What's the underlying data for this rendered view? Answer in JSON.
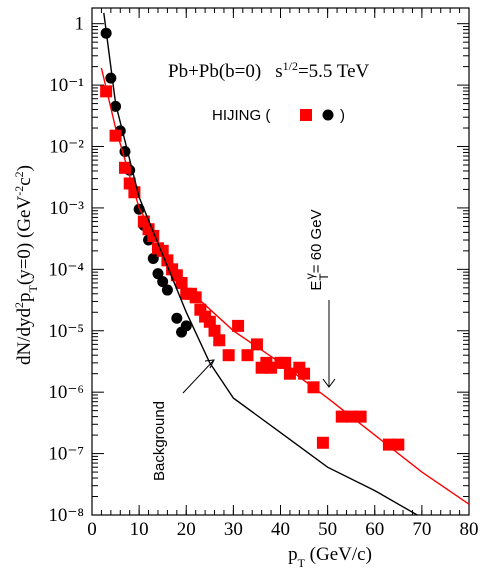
{
  "chart_data": {
    "type": "scatter",
    "title": [
      "Pb+Pb(b=0)",
      "s",
      "1/2",
      "=5.5 TeV"
    ],
    "x_label": [
      "p",
      "T",
      " (GeV/c)"
    ],
    "y_label": [
      "dN/dyd",
      "2",
      "p",
      "T",
      "(y=0) (GeV",
      "-2",
      "c",
      "2",
      ")"
    ],
    "legend": [
      "HIJING (",
      ")"
    ],
    "annotations": {
      "background": "Background",
      "energy": [
        "E",
        "T",
        "γ",
        "= 60 GeV"
      ]
    },
    "log_y": true,
    "xlim": [
      0,
      80
    ],
    "xticks": [
      0,
      10,
      20,
      30,
      40,
      50,
      60,
      70,
      80
    ],
    "ylim": [
      1e-08,
      1.8
    ],
    "yticks": [
      1,
      {
        "value": 0.1,
        "label": "10⁻¹"
      },
      {
        "value": 0.01,
        "label": "10⁻²"
      },
      {
        "value": 0.001,
        "label": "10⁻³"
      },
      {
        "value": 0.0001,
        "label": "10⁻⁴"
      },
      {
        "value": 1e-05,
        "label": "10⁻⁵"
      },
      {
        "value": 1e-06,
        "label": "10⁻⁶"
      },
      {
        "value": 1e-07,
        "label": "10⁻⁷"
      },
      {
        "value": 1e-08,
        "label": "10⁻⁸"
      }
    ],
    "series": [
      {
        "mode": "markers",
        "marker": "circle",
        "color": "#000000",
        "x": [
          3,
          4,
          5,
          6,
          7,
          8,
          9,
          10,
          11,
          12,
          13,
          14,
          15,
          16,
          18,
          19,
          20
        ],
        "values": [
          0.7,
          0.13,
          0.045,
          0.018,
          0.0083,
          0.0041,
          0.0019,
          0.00095,
          0.00052,
          0.0003,
          0.00015,
          8.5e-05,
          6.3e-05,
          4.6e-05,
          1.6e-05,
          9.5e-06,
          1.2e-05
        ]
      },
      {
        "mode": "markers",
        "marker": "square",
        "color": "#ff0000",
        "x": [
          3,
          5,
          7,
          8,
          9,
          11,
          12,
          13,
          14,
          15,
          16,
          17,
          18,
          19,
          20,
          21,
          22,
          23,
          24,
          25,
          26,
          27,
          29,
          31,
          33,
          35,
          36,
          37,
          38,
          40,
          41,
          42,
          44,
          45,
          47,
          49,
          53,
          55,
          57,
          63,
          65
        ],
        "values": [
          0.079,
          0.015,
          0.0045,
          0.0025,
          0.0018,
          0.0006,
          0.00045,
          0.00035,
          0.00022,
          0.0002,
          0.00014,
          0.0001,
          8e-05,
          6e-05,
          4e-05,
          4e-05,
          3.5e-05,
          2.2e-05,
          1.7e-05,
          1.4e-05,
          1e-05,
          7e-06,
          4e-06,
          1.2e-05,
          4e-06,
          6e-06,
          2.5e-06,
          3e-06,
          2.5e-06,
          3e-06,
          3e-06,
          2e-06,
          2.5e-06,
          2e-06,
          1.2e-06,
          1.5e-07,
          4e-07,
          4e-07,
          4e-07,
          1.4e-07,
          1.4e-07
        ]
      },
      {
        "mode": "line",
        "color": "#ff0000",
        "x": [
          2,
          5,
          10,
          15,
          20,
          30,
          40,
          50,
          60,
          70,
          80
        ],
        "values": [
          0.19,
          0.02,
          0.001,
          0.0002,
          5e-05,
          1e-05,
          3e-06,
          8e-07,
          2e-07,
          5e-08,
          1.5e-08
        ]
      },
      {
        "mode": "line",
        "color": "#000000",
        "x": [
          2.5,
          5,
          10,
          20,
          25,
          30,
          40,
          50,
          60,
          69
        ],
        "values": [
          1.5,
          0.05,
          0.0015,
          2e-05,
          3e-06,
          8e-07,
          2.2e-07,
          6e-08,
          2.5e-08,
          1e-08
        ]
      }
    ]
  }
}
